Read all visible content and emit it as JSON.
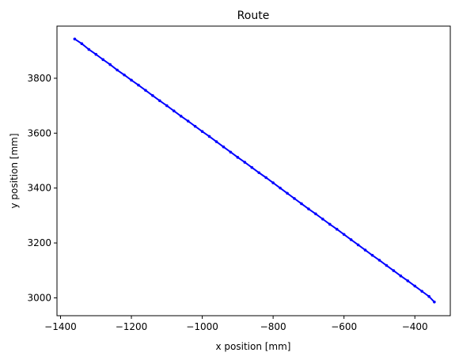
{
  "chart_data": {
    "type": "line",
    "title": "Route",
    "xlabel": "x position [mm]",
    "ylabel": "y position [mm]",
    "xlim": [
      -1410,
      -300
    ],
    "ylim": [
      2935,
      3990
    ],
    "xticks": [
      -1400,
      -1200,
      -1000,
      -800,
      -600,
      -400
    ],
    "xtick_labels": [
      "−1400",
      "−1200",
      "−1000",
      "−800",
      "−600",
      "−400"
    ],
    "yticks": [
      3000,
      3200,
      3400,
      3600,
      3800
    ],
    "ytick_labels": [
      "3000",
      "3200",
      "3400",
      "3600",
      "3800"
    ],
    "grid": false,
    "series": [
      {
        "color": "#0000ff",
        "marker": "dot",
        "x": [
          -1360,
          -1340,
          -1320,
          -1300,
          -1280,
          -1260,
          -1240,
          -1220,
          -1200,
          -1180,
          -1160,
          -1140,
          -1120,
          -1100,
          -1080,
          -1060,
          -1040,
          -1020,
          -1000,
          -980,
          -960,
          -940,
          -920,
          -900,
          -880,
          -860,
          -840,
          -820,
          -800,
          -780,
          -760,
          -740,
          -720,
          -700,
          -680,
          -660,
          -640,
          -620,
          -600,
          -580,
          -560,
          -540,
          -520,
          -500,
          -480,
          -460,
          -440,
          -420,
          -400,
          -380,
          -360,
          -345
        ],
        "y": [
          3943,
          3926,
          3905,
          3887,
          3868,
          3850,
          3830,
          3812,
          3793,
          3775,
          3756,
          3737,
          3718,
          3700,
          3681,
          3662,
          3644,
          3625,
          3606,
          3588,
          3569,
          3550,
          3531,
          3512,
          3494,
          3475,
          3456,
          3438,
          3419,
          3400,
          3381,
          3362,
          3343,
          3324,
          3306,
          3287,
          3268,
          3250,
          3231,
          3212,
          3193,
          3174,
          3155,
          3137,
          3118,
          3099,
          3080,
          3062,
          3043,
          3024,
          3005,
          2985
        ]
      }
    ]
  }
}
